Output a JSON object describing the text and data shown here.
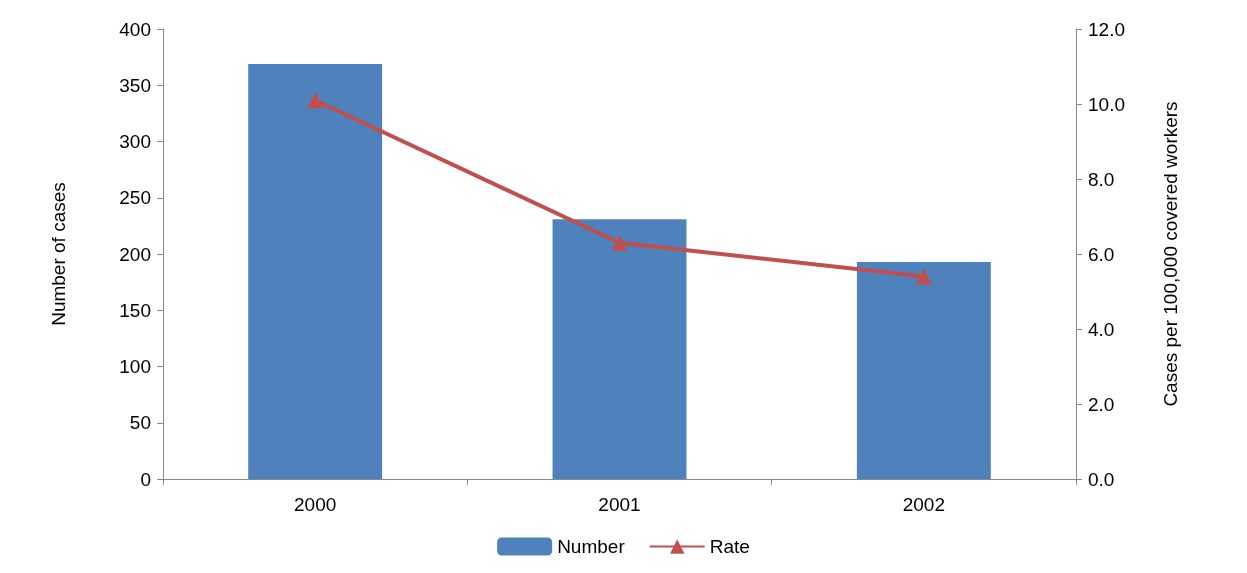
{
  "chart_data": {
    "type": "bar",
    "categories": [
      "2000",
      "2001",
      "2002"
    ],
    "ylabel": "Number of cases",
    "y2label": "Cases per 100,000 covered workers",
    "series": [
      {
        "name": "Number",
        "color": "#4f81bd",
        "values": [
          369,
          231,
          193
        ]
      },
      {
        "name": "Rate",
        "type": "line",
        "axis": "y2",
        "color": "#c0504d",
        "values": [
          10.1,
          6.3,
          5.4
        ],
        "marker": "triangle"
      }
    ],
    "ylim": [
      0,
      400
    ],
    "yticks": [
      0,
      50,
      100,
      150,
      200,
      250,
      300,
      350,
      400
    ],
    "y2lim": [
      0,
      12
    ],
    "y2ticks": [
      {
        "value": 0,
        "label": "0.0"
      },
      {
        "value": 2,
        "label": "2.0"
      },
      {
        "value": 4,
        "label": "4.0"
      },
      {
        "value": 6,
        "label": "6.0"
      },
      {
        "value": 8,
        "label": "8.0"
      },
      {
        "value": 10,
        "label": "10.0"
      },
      {
        "value": 12,
        "label": "12.0"
      }
    ],
    "grid": false,
    "legend": "bottom"
  }
}
